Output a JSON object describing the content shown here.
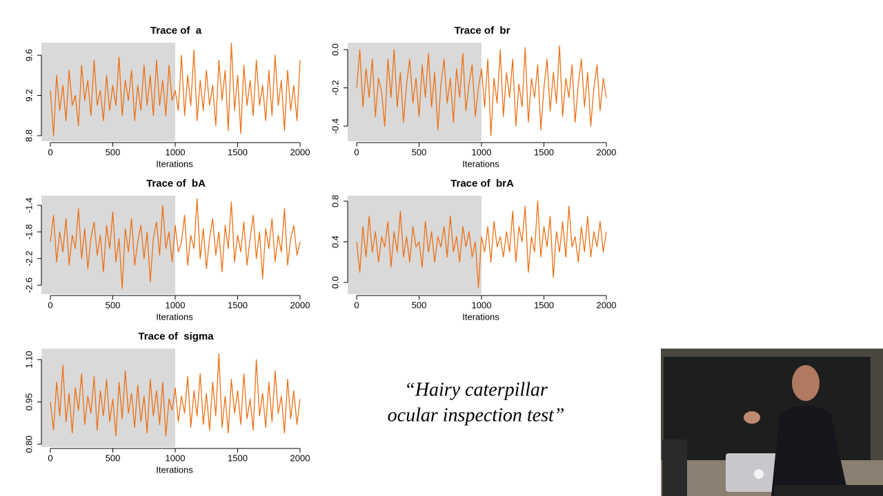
{
  "chart_data": [
    {
      "type": "line",
      "title": "Trace of  a",
      "xlabel": "Iterations",
      "color": "#ec7014",
      "shaded_xmax": 1000,
      "xlim": [
        -72,
        2083
      ],
      "xticks": [
        0,
        500,
        1000,
        1500,
        2000
      ],
      "ylim": [
        8.745,
        9.724
      ],
      "yticks": [
        8.8,
        9.2,
        9.6
      ],
      "x": [
        0,
        25,
        50,
        75,
        100,
        125,
        150,
        175,
        200,
        225,
        250,
        275,
        300,
        325,
        350,
        375,
        400,
        425,
        450,
        475,
        500,
        525,
        550,
        575,
        600,
        625,
        650,
        675,
        700,
        725,
        750,
        775,
        800,
        825,
        850,
        875,
        900,
        925,
        950,
        975,
        1000,
        1025,
        1050,
        1075,
        1100,
        1125,
        1150,
        1175,
        1200,
        1225,
        1250,
        1275,
        1300,
        1325,
        1350,
        1375,
        1400,
        1425,
        1450,
        1475,
        1500,
        1525,
        1550,
        1575,
        1600,
        1625,
        1650,
        1675,
        1700,
        1725,
        1750,
        1775,
        1800,
        1825,
        1850,
        1875,
        1900,
        1925,
        1950,
        1975,
        2000
      ],
      "values": [
        9.25,
        8.8,
        9.4,
        9.05,
        9.3,
        8.95,
        9.45,
        9.1,
        9.2,
        8.9,
        9.5,
        9.15,
        9.35,
        9.0,
        9.55,
        9.1,
        9.25,
        8.95,
        9.4,
        9.05,
        9.3,
        9.1,
        9.58,
        9.0,
        9.35,
        9.15,
        9.45,
        8.95,
        9.3,
        9.05,
        9.5,
        9.1,
        9.4,
        9.0,
        9.55,
        9.1,
        9.35,
        9.0,
        9.5,
        9.15,
        9.25,
        9.05,
        9.6,
        9.0,
        9.4,
        9.1,
        9.65,
        8.95,
        9.35,
        9.05,
        9.45,
        9.1,
        9.3,
        8.9,
        9.55,
        9.15,
        9.45,
        8.85,
        9.72,
        9.05,
        9.4,
        8.82,
        9.5,
        9.1,
        9.35,
        9.0,
        9.55,
        9.1,
        9.3,
        8.95,
        9.45,
        9.0,
        9.6,
        9.1,
        9.35,
        8.85,
        9.45,
        9.05,
        9.3,
        8.95,
        9.55
      ]
    },
    {
      "type": "line",
      "title": "Trace of  br",
      "xlabel": "Iterations",
      "color": "#ec7014",
      "shaded_xmax": 1000,
      "xlim": [
        -72,
        2083
      ],
      "xticks": [
        0,
        500,
        1000,
        1500,
        2000
      ],
      "ylim": [
        -0.479,
        0.036
      ],
      "yticks": [
        -0.4,
        -0.2,
        {
          "value": 0,
          "label": "0.0"
        }
      ],
      "x": [
        0,
        25,
        50,
        75,
        100,
        125,
        150,
        175,
        200,
        225,
        250,
        275,
        300,
        325,
        350,
        375,
        400,
        425,
        450,
        475,
        500,
        525,
        550,
        575,
        600,
        625,
        650,
        675,
        700,
        725,
        750,
        775,
        800,
        825,
        850,
        875,
        900,
        925,
        950,
        975,
        1000,
        1025,
        1050,
        1075,
        1100,
        1125,
        1150,
        1175,
        1200,
        1225,
        1250,
        1275,
        1300,
        1325,
        1350,
        1375,
        1400,
        1425,
        1450,
        1475,
        1500,
        1525,
        1550,
        1575,
        1600,
        1625,
        1650,
        1675,
        1700,
        1725,
        1750,
        1775,
        1800,
        1825,
        1850,
        1875,
        1900,
        1925,
        1950,
        1975,
        2000
      ],
      "values": [
        -0.2,
        0.0,
        -0.3,
        -0.1,
        -0.25,
        -0.05,
        -0.35,
        -0.15,
        -0.22,
        -0.4,
        -0.05,
        -0.25,
        0.0,
        -0.3,
        -0.12,
        -0.38,
        -0.18,
        -0.05,
        -0.28,
        -0.15,
        -0.35,
        -0.08,
        -0.25,
        -0.02,
        -0.3,
        -0.12,
        -0.42,
        -0.18,
        -0.05,
        -0.28,
        -0.15,
        -0.38,
        -0.1,
        -0.25,
        -0.02,
        -0.32,
        -0.18,
        -0.08,
        -0.35,
        -0.2,
        -0.1,
        -0.3,
        -0.05,
        -0.45,
        -0.15,
        -0.28,
        0.0,
        -0.35,
        -0.12,
        -0.25,
        -0.05,
        -0.4,
        -0.18,
        -0.3,
        0.01,
        -0.38,
        -0.15,
        -0.25,
        -0.08,
        -0.42,
        -0.2,
        -0.05,
        -0.32,
        -0.12,
        -0.28,
        0.02,
        -0.35,
        -0.15,
        -0.25,
        -0.08,
        -0.38,
        -0.18,
        -0.05,
        -0.3,
        -0.12,
        -0.4,
        -0.2,
        -0.08,
        -0.32,
        -0.15,
        -0.25
      ]
    },
    {
      "type": "line",
      "title": "Trace of  bA",
      "xlabel": "Iterations",
      "color": "#ec7014",
      "shaded_xmax": 1000,
      "xlim": [
        -72,
        2083
      ],
      "xticks": [
        0,
        500,
        1000,
        1500,
        2000
      ],
      "ylim": [
        -2.734,
        -1.255
      ],
      "yticks": [
        -2.6,
        -2.2,
        -1.8,
        -1.4
      ],
      "x": [
        0,
        25,
        50,
        75,
        100,
        125,
        150,
        175,
        200,
        225,
        250,
        275,
        300,
        325,
        350,
        375,
        400,
        425,
        450,
        475,
        500,
        525,
        550,
        575,
        600,
        625,
        650,
        675,
        700,
        725,
        750,
        775,
        800,
        825,
        850,
        875,
        900,
        925,
        950,
        975,
        1000,
        1025,
        1050,
        1075,
        1100,
        1125,
        1150,
        1175,
        1200,
        1225,
        1250,
        1275,
        1300,
        1325,
        1350,
        1375,
        1400,
        1425,
        1450,
        1475,
        1500,
        1525,
        1550,
        1575,
        1600,
        1625,
        1650,
        1675,
        1700,
        1725,
        1750,
        1775,
        1800,
        1825,
        1850,
        1875,
        1900,
        1925,
        1950,
        1975,
        2000
      ],
      "values": [
        -1.95,
        -1.55,
        -2.25,
        -1.8,
        -2.1,
        -1.6,
        -2.3,
        -1.85,
        -2.05,
        -1.45,
        -2.2,
        -1.75,
        -2.35,
        -1.9,
        -1.65,
        -2.15,
        -1.85,
        -2.4,
        -1.7,
        -2.05,
        -1.5,
        -2.25,
        -1.9,
        -2.65,
        -1.75,
        -2.1,
        -1.6,
        -2.3,
        -1.95,
        -1.7,
        -2.2,
        -1.8,
        -2.55,
        -1.9,
        -1.65,
        -2.15,
        -1.4,
        -2.05,
        -1.8,
        -2.25,
        -1.7,
        -2.1,
        -1.95,
        -1.55,
        -2.3,
        -1.85,
        -2.05,
        -1.3,
        -2.2,
        -1.75,
        -2.35,
        -1.9,
        -1.6,
        -2.15,
        -1.8,
        -2.4,
        -1.7,
        -2.05,
        -1.35,
        -2.25,
        -1.85,
        -2.1,
        -1.65,
        -2.3,
        -1.9,
        -1.55,
        -2.2,
        -1.8,
        -2.5,
        -1.75,
        -2.05,
        -1.6,
        -2.25,
        -1.85,
        -2.1,
        -1.45,
        -2.3,
        -1.9,
        -1.7,
        -2.15,
        -1.95
      ]
    },
    {
      "type": "line",
      "title": "Trace of  brA",
      "xlabel": "Iterations",
      "color": "#ec7014",
      "shaded_xmax": 1000,
      "xlim": [
        -72,
        2083
      ],
      "xticks": [
        0,
        500,
        1000,
        1500,
        2000
      ],
      "ylim": [
        -0.115,
        0.854
      ],
      "yticks": [
        {
          "value": 0,
          "label": "0.0"
        },
        0.4,
        0.8
      ],
      "x": [
        0,
        25,
        50,
        75,
        100,
        125,
        150,
        175,
        200,
        225,
        250,
        275,
        300,
        325,
        350,
        375,
        400,
        425,
        450,
        475,
        500,
        525,
        550,
        575,
        600,
        625,
        650,
        675,
        700,
        725,
        750,
        775,
        800,
        825,
        850,
        875,
        900,
        925,
        950,
        975,
        1000,
        1025,
        1050,
        1075,
        1100,
        1125,
        1150,
        1175,
        1200,
        1225,
        1250,
        1275,
        1300,
        1325,
        1350,
        1375,
        1400,
        1425,
        1450,
        1475,
        1500,
        1525,
        1550,
        1575,
        1600,
        1625,
        1650,
        1675,
        1700,
        1725,
        1750,
        1775,
        1800,
        1825,
        1850,
        1875,
        1900,
        1925,
        1950,
        1975,
        2000
      ],
      "values": [
        0.4,
        0.1,
        0.55,
        0.25,
        0.65,
        0.3,
        0.5,
        0.2,
        0.45,
        0.35,
        0.6,
        0.15,
        0.5,
        0.3,
        0.7,
        0.25,
        0.45,
        0.2,
        0.55,
        0.35,
        0.4,
        0.15,
        0.6,
        0.3,
        0.5,
        0.2,
        0.45,
        0.35,
        0.55,
        0.25,
        0.65,
        0.3,
        0.45,
        0.2,
        0.55,
        0.35,
        0.5,
        0.25,
        0.4,
        -0.05,
        0.45,
        0.3,
        0.55,
        0.2,
        0.6,
        0.35,
        0.45,
        0.25,
        0.5,
        0.3,
        0.7,
        0.2,
        0.55,
        0.4,
        0.75,
        0.1,
        0.45,
        0.3,
        0.8,
        0.25,
        0.55,
        0.35,
        0.65,
        0.05,
        0.5,
        0.3,
        0.6,
        0.25,
        0.75,
        0.35,
        0.45,
        0.2,
        0.55,
        0.3,
        0.65,
        0.25,
        0.5,
        0.35,
        0.6,
        0.3,
        0.5
      ]
    },
    {
      "type": "line",
      "title": "Trace of  sigma",
      "xlabel": "Iterations",
      "color": "#ec7014",
      "shaded_xmax": 1000,
      "xlim": [
        -72,
        2083
      ],
      "xticks": [
        0,
        500,
        1000,
        1500,
        2000
      ],
      "ylim": [
        0.79,
        1.139
      ],
      "yticks": [
        {
          "value": 0.8,
          "label": "0.80"
        },
        0.95,
        {
          "value": 1.1,
          "label": "1.10"
        }
      ],
      "x": [
        0,
        25,
        50,
        75,
        100,
        125,
        150,
        175,
        200,
        225,
        250,
        275,
        300,
        325,
        350,
        375,
        400,
        425,
        450,
        475,
        500,
        525,
        550,
        575,
        600,
        625,
        650,
        675,
        700,
        725,
        750,
        775,
        800,
        825,
        850,
        875,
        900,
        925,
        950,
        975,
        1000,
        1025,
        1050,
        1075,
        1100,
        1125,
        1150,
        1175,
        1200,
        1225,
        1250,
        1275,
        1300,
        1325,
        1350,
        1375,
        1400,
        1425,
        1450,
        1475,
        1500,
        1525,
        1550,
        1575,
        1600,
        1625,
        1650,
        1675,
        1700,
        1725,
        1750,
        1775,
        1800,
        1825,
        1850,
        1875,
        1900,
        1925,
        1950,
        1975,
        2000
      ],
      "values": [
        0.95,
        0.85,
        1.02,
        0.9,
        1.08,
        0.88,
        0.98,
        0.84,
        1.0,
        0.92,
        1.05,
        0.87,
        0.97,
        0.91,
        1.04,
        0.85,
        0.99,
        0.9,
        1.03,
        0.88,
        0.96,
        0.83,
        1.02,
        0.89,
        1.06,
        0.91,
        0.98,
        0.86,
        1.01,
        0.88,
        0.97,
        0.84,
        1.03,
        0.9,
        0.99,
        0.87,
        1.02,
        0.83,
        0.96,
        0.92,
        1.0,
        0.88,
        0.97,
        0.91,
        1.04,
        0.86,
        0.99,
        0.9,
        1.05,
        0.87,
        0.98,
        0.85,
        1.02,
        0.9,
        1.12,
        0.86,
        0.97,
        0.84,
        1.03,
        0.91,
        0.99,
        0.87,
        1.05,
        0.89,
        0.96,
        0.85,
        1.1,
        0.9,
        0.98,
        0.86,
        1.02,
        0.88,
        1.06,
        0.91,
        0.97,
        0.84,
        1.03,
        0.89,
        0.99,
        0.87,
        0.96
      ]
    }
  ],
  "quote": [
    "“Hairy caterpillar",
    "ocular inspection test”"
  ]
}
